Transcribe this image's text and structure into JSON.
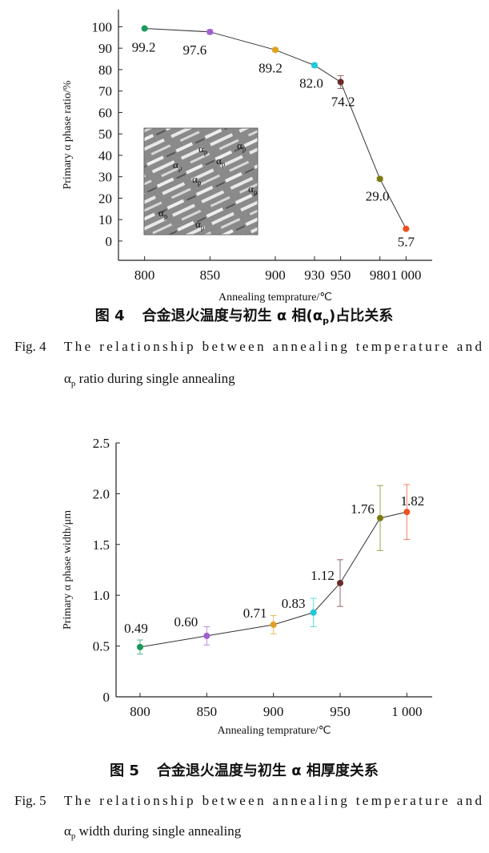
{
  "chart_data": [
    {
      "type": "line",
      "x": [
        800,
        850,
        900,
        930,
        950,
        980,
        1000
      ],
      "series": [
        {
          "values": [
            99.2,
            97.6,
            89.2,
            82.0,
            74.2,
            29.0,
            5.7
          ],
          "value_labels": [
            "99.2",
            "97.6",
            "89.2",
            "82.0",
            "74.2",
            "29.0",
            "5.7"
          ],
          "errors": [
            0.5,
            1,
            0.8,
            1,
            3,
            0.8,
            0.5
          ]
        }
      ],
      "point_colors": [
        "#1a9a5a",
        "#a060d0",
        "#e0a020",
        "#20c8d8",
        "#6a2a2a",
        "#7a7a10",
        "#f05020"
      ],
      "line_color": "#333333",
      "xlim": [
        780,
        1020
      ],
      "xticks": [
        800,
        850,
        900,
        930,
        950,
        980,
        {
          "value": 1000,
          "label": "1 000"
        }
      ],
      "ylim": [
        -9,
        108
      ],
      "yticks": [
        0,
        10,
        20,
        30,
        40,
        50,
        60,
        70,
        80,
        90,
        100
      ],
      "x_label": "Annealing temprature/℃",
      "y_label": "Primary α phase ratio/%",
      "inset_label": {
        "text": "α",
        "sub": "p"
      },
      "caption": {
        "number": "图 4",
        "text": [
          "合金退火温度与初生 α 相(α",
          "p",
          ")占比关系"
        ]
      },
      "caption_en": {
        "number": "Fig. 4",
        "line1": "The relationship between annealing temperature and",
        "line2": [
          "α",
          "p",
          " ratio during single annealing"
        ]
      }
    },
    {
      "type": "line",
      "x": [
        800,
        850,
        900,
        930,
        950,
        980,
        1000
      ],
      "series": [
        {
          "values": [
            0.49,
            0.6,
            0.71,
            0.83,
            1.12,
            1.76,
            1.82
          ],
          "value_labels": [
            "0.49",
            "0.60",
            "0.71",
            "0.83",
            "1.12",
            "1.76",
            "1.82"
          ],
          "errors": [
            0.07,
            0.09,
            0.09,
            0.14,
            0.23,
            0.32,
            0.27
          ]
        }
      ],
      "point_colors": [
        "#1a9a5a",
        "#a060d0",
        "#e0a020",
        "#20c8d8",
        "#6a2a2a",
        "#7a7a10",
        "#f05020"
      ],
      "line_color": "#333333",
      "xlim": [
        782,
        1019
      ],
      "xticks": [
        800,
        850,
        900,
        950,
        {
          "value": 1000,
          "label": "1 000"
        }
      ],
      "ylim": [
        0,
        2.5
      ],
      "yticks": [
        0,
        0.5,
        {
          "value": 1,
          "label": "1.0"
        },
        1.5,
        {
          "value": 2,
          "label": "2.0"
        },
        2.5
      ],
      "x_label": "Annealing temprature/℃",
      "y_label": "Primary α phase width/μm",
      "caption": {
        "number": "图 5",
        "text": [
          "合金退火温度与初生 α 相厚度关系"
        ]
      },
      "caption_en": {
        "number": "Fig. 5",
        "line1": "The relationship between annealing temperature and",
        "line2": [
          "α",
          "p",
          " width during single annealing"
        ]
      }
    }
  ]
}
